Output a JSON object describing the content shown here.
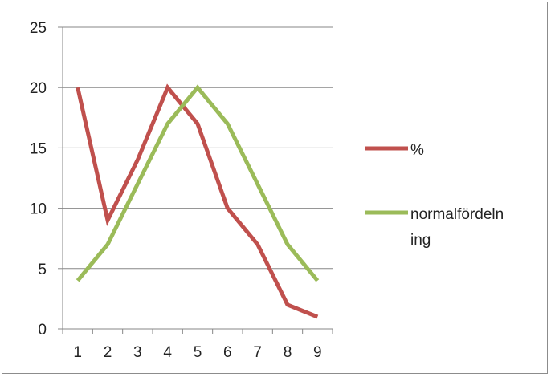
{
  "chart_data": {
    "type": "line",
    "categories": [
      "1",
      "2",
      "3",
      "4",
      "5",
      "6",
      "7",
      "8",
      "9"
    ],
    "series": [
      {
        "name": "%",
        "color": "#c0504d",
        "values": [
          20,
          9,
          14,
          20,
          17,
          10,
          7,
          2,
          1
        ]
      },
      {
        "name": "normalfördelning",
        "color": "#9bbb59",
        "values": [
          4,
          7,
          12,
          17,
          20,
          17,
          12,
          7,
          4
        ]
      }
    ],
    "ylim": [
      0,
      25
    ],
    "yticks": [
      0,
      5,
      10,
      15,
      20,
      25
    ],
    "grid": true,
    "legend_position": "right",
    "legend": {
      "series1_label": "%",
      "series2_label_lines": [
        "normalfördeln",
        "ing"
      ]
    }
  }
}
